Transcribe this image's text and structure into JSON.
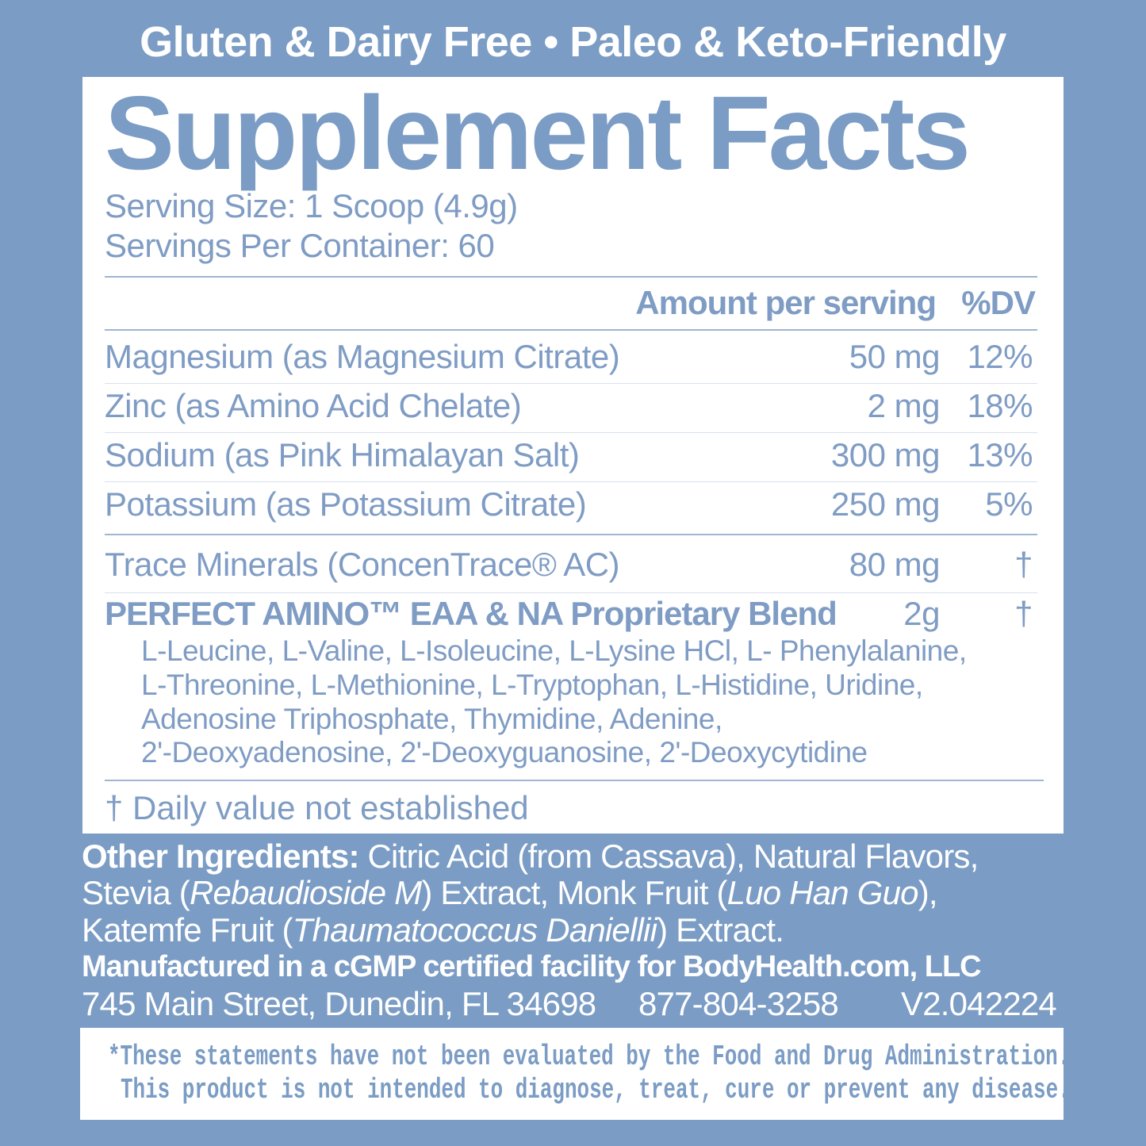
{
  "banner": "Gluten & Dairy Free • Paleo & Keto-Friendly",
  "title": "Supplement Facts",
  "serving_size": "Serving Size: 1 Scoop (4.9g)",
  "servings_per_container": "Servings Per Container: 60",
  "header": {
    "amount": "Amount per serving",
    "dv": "%DV"
  },
  "rows": [
    {
      "name": "Magnesium (as Magnesium Citrate)",
      "amount": "50 mg",
      "dv": "12%"
    },
    {
      "name": "Zinc (as Amino Acid Chelate)",
      "amount": "2 mg",
      "dv": "18%"
    },
    {
      "name": "Sodium (as Pink Himalayan Salt)",
      "amount": "300 mg",
      "dv": "13%"
    },
    {
      "name": "Potassium (as Potassium Citrate)",
      "amount": "250 mg",
      "dv": "5%"
    },
    {
      "name": "Trace Minerals (ConcenTrace® AC)",
      "amount": "80 mg",
      "dv": "†"
    },
    {
      "name": "PERFECT AMINO™ EAA & NA Proprietary Blend",
      "amount": "2g",
      "dv": "†"
    }
  ],
  "blend_ingredients": [
    "L-Leucine, L-Valine, L-Isoleucine, L-Lysine HCl, L- Phenylalanine,",
    "L-Threonine, L-Methionine, L-Tryptophan, L-Histidine, Uridine,",
    "Adenosine Triphosphate, Thymidine, Adenine,",
    "2'-Deoxyadenosine, 2'-Deoxyguanosine, 2'-Deoxycytidine"
  ],
  "footnote": "† Daily value not established",
  "other": {
    "label": "Other Ingredients:",
    "l1": " Citric Acid (from Cassava), Natural Flavors,",
    "l2a": "Stevia (",
    "l2b": "Rebaudioside M",
    "l2c": ") Extract, Monk Fruit (",
    "l2d": "Luo Han Guo",
    "l2e": "),",
    "l3a": "Katemfe Fruit (",
    "l3b": "Thaumatococcus Daniellii",
    "l3c": ") Extract."
  },
  "manufacturer": "Manufactured in a cGMP certified facility for  BodyHealth.com, LLC",
  "address": "745 Main Street, Dunedin, FL 34698",
  "phone": "877-804-3258",
  "version": "V2.042224",
  "disclaimer": [
    "*These statements have not been evaluated by the Food and Drug Administration.",
    "This product is not intended to diagnose, treat, cure or prevent any disease."
  ]
}
